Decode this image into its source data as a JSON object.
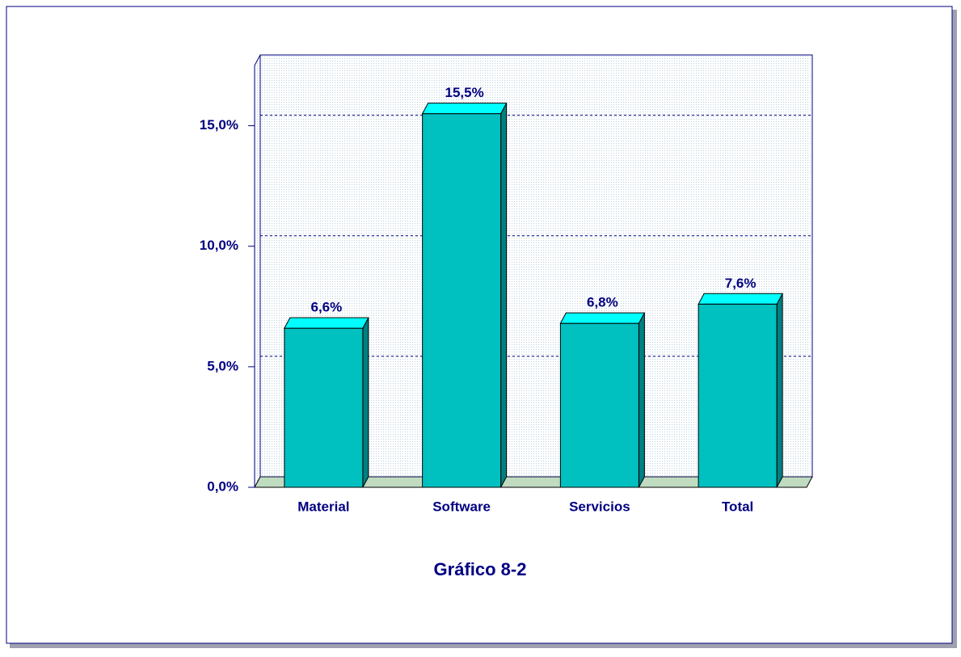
{
  "chart_data": {
    "type": "bar",
    "title": "Gráfico 8-2",
    "categories": [
      "Material",
      "Software",
      "Servicios",
      "Total"
    ],
    "values": [
      6.6,
      15.5,
      6.8,
      7.6
    ],
    "value_labels": [
      "6,6%",
      "15,5%",
      "6,8%",
      "7,6%"
    ],
    "color": "#00c0c0",
    "ylim": [
      0,
      17.5
    ],
    "yticks": [
      {
        "value": 0,
        "label": "0,0%"
      },
      {
        "value": 5,
        "label": "5,0%"
      },
      {
        "value": 10,
        "label": "10,0%"
      },
      {
        "value": 15,
        "label": "15,0%"
      }
    ],
    "grid": true
  }
}
